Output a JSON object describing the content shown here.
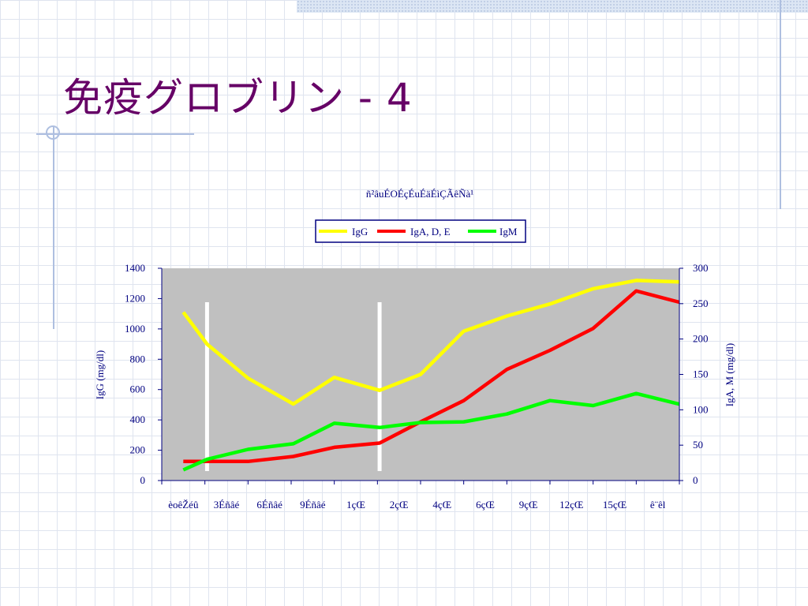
{
  "slide": {
    "title": "免疫グロブリン - 4"
  },
  "colors": {
    "title": "#660066",
    "plot_background": "#c0c0c0",
    "axis_text": "#000080",
    "igg": "#ffff00",
    "iga": "#ff0000",
    "igm": "#00ff00",
    "markers": "#ffffff"
  },
  "chart_data": {
    "type": "line",
    "title": "ñ²âuÉOÉçÉuÉäÉìÇÃêÑà¹",
    "categories": [
      "èoêŽéû",
      "3Éñâé",
      "6Éñâé",
      "9Éñâé",
      "1çŒ",
      "2çŒ",
      "4çŒ",
      "6çŒ",
      "9çŒ",
      "12çŒ",
      "15çŒ",
      "ê¨êl"
    ],
    "ylabel_left": "IgG (mg/dl)",
    "ylabel_right": "IgA, M (mg/dl)",
    "ylim_left": [
      0,
      1400
    ],
    "ylim_right": [
      0,
      300
    ],
    "yticks_left": [
      0,
      200,
      400,
      600,
      800,
      1000,
      1200,
      1400
    ],
    "yticks_right": [
      0,
      50,
      100,
      150,
      200,
      250,
      300
    ],
    "legend_position": "top-center",
    "grid": false,
    "series": [
      {
        "name": "IgG",
        "axis": "left",
        "color": "#ffff00",
        "x": [
          0,
          0.55,
          1.5,
          2.55,
          3.5,
          4.55,
          5.5,
          6.5,
          7.5,
          8.5,
          9.5,
          10.5,
          11.5
        ],
        "values": [
          1110,
          900,
          675,
          505,
          680,
          595,
          700,
          985,
          1085,
          1165,
          1265,
          1320,
          1310
        ]
      },
      {
        "name": "IgA, D, E",
        "axis": "right",
        "color": "#ff0000",
        "x": [
          0,
          0.55,
          1.5,
          2.55,
          3.5,
          4.55,
          5.5,
          6.5,
          7.5,
          8.5,
          9.5,
          10.5,
          11.5
        ],
        "values": [
          27,
          27,
          27,
          34,
          47,
          53,
          83,
          113,
          157,
          184,
          215,
          268,
          252
        ]
      },
      {
        "name": "IgM",
        "axis": "right",
        "color": "#00ff00",
        "x": [
          0,
          0.55,
          1.5,
          2.55,
          3.5,
          4.55,
          5.5,
          6.5,
          7.5,
          8.5,
          9.5,
          10.5,
          11.5
        ],
        "values": [
          15,
          30,
          44,
          52,
          81,
          75,
          82,
          83,
          94,
          113,
          106,
          123,
          108
        ]
      }
    ],
    "markers_at_x": [
      0.55,
      4.55
    ]
  }
}
